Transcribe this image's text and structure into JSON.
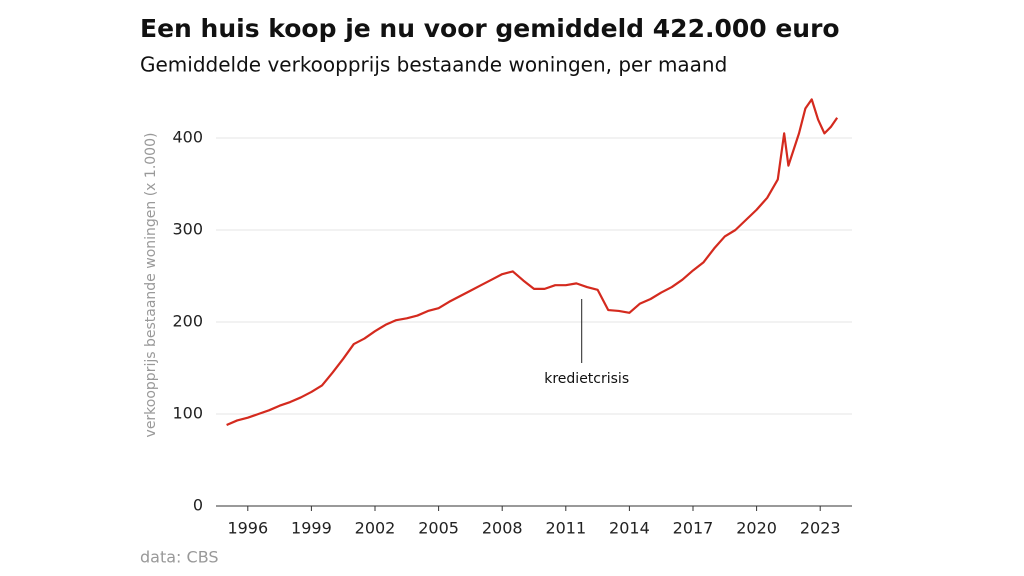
{
  "chart_data": {
    "type": "line",
    "title": "Een huis koop je nu voor gemiddeld 422.000 euro",
    "subtitle": "Gemiddelde verkoopprijs bestaande woningen, per maand",
    "y_label": "verkoopprijs bestaande woningen (x 1.000)",
    "source": "data: CBS",
    "annotation": {
      "text": "kredietcrisis",
      "x": 2011.75,
      "y": 225
    },
    "xlim": [
      1994.5,
      2024.5
    ],
    "xticks": [
      1996,
      1999,
      2002,
      2005,
      2008,
      2011,
      2014,
      2017,
      2020,
      2023
    ],
    "ylim": [
      0,
      450
    ],
    "yticks": [
      0,
      100,
      200,
      300,
      400
    ],
    "grid": true,
    "series": [
      {
        "name": "verkoopprijs",
        "color": "#d42a1e",
        "x": [
          1995.0,
          1995.5,
          1996.0,
          1996.5,
          1997.0,
          1997.5,
          1998.0,
          1998.5,
          1999.0,
          1999.5,
          2000.0,
          2000.5,
          2001.0,
          2001.5,
          2002.0,
          2002.5,
          2003.0,
          2003.5,
          2004.0,
          2004.5,
          2005.0,
          2005.5,
          2006.0,
          2006.5,
          2007.0,
          2007.5,
          2008.0,
          2008.5,
          2009.0,
          2009.5,
          2010.0,
          2010.5,
          2011.0,
          2011.5,
          2012.0,
          2012.5,
          2013.0,
          2013.5,
          2014.0,
          2014.5,
          2015.0,
          2015.5,
          2016.0,
          2016.5,
          2017.0,
          2017.5,
          2018.0,
          2018.5,
          2019.0,
          2019.5,
          2020.0,
          2020.5,
          2021.0,
          2021.3,
          2021.5,
          2022.0,
          2022.3,
          2022.6,
          2022.9,
          2023.2,
          2023.5,
          2023.8
        ],
        "values": [
          88,
          93,
          96,
          100,
          104,
          109,
          113,
          118,
          124,
          131,
          145,
          160,
          176,
          182,
          190,
          197,
          202,
          204,
          207,
          212,
          215,
          222,
          228,
          234,
          240,
          246,
          252,
          255,
          245,
          236,
          236,
          240,
          240,
          242,
          238,
          235,
          213,
          212,
          210,
          220,
          225,
          232,
          238,
          246,
          256,
          265,
          280,
          293,
          300,
          311,
          322,
          335,
          355,
          405,
          370,
          405,
          432,
          442,
          420,
          405,
          412,
          422
        ]
      }
    ]
  }
}
